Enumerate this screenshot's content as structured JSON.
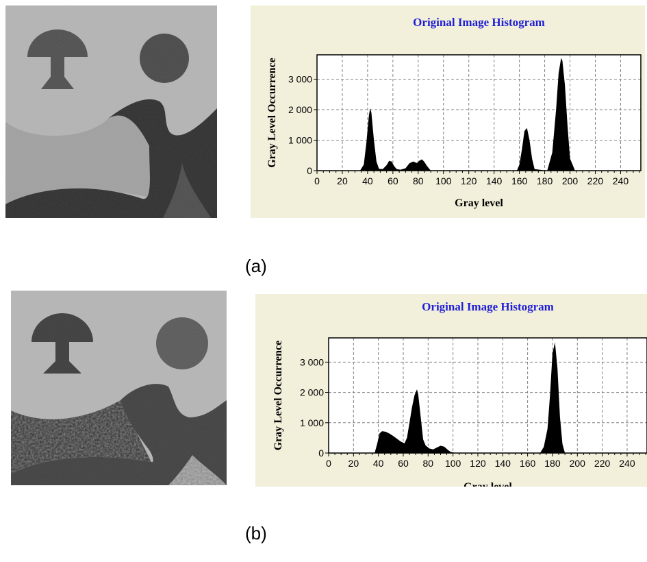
{
  "captions": {
    "a": "(a)",
    "b": "(b)"
  },
  "colors": {
    "panel_bg": "#f2efdb",
    "title": "#1e1ed6",
    "grid": "#808080",
    "fill": "#000000",
    "light_gray": "#b4b4b4",
    "mid_gray": "#a0a0a0",
    "dark_gray": "#2a2a2a",
    "shape_gray": "#4c4c4c"
  },
  "chart_data": [
    {
      "type": "area",
      "title": "Original Image Histogram",
      "xlabel": "Gray level",
      "ylabel": "Gray Level Occurrence",
      "xlim": [
        0,
        256
      ],
      "ylim": [
        0,
        3800
      ],
      "xticks": [
        0,
        20,
        40,
        60,
        80,
        100,
        120,
        140,
        160,
        180,
        200,
        220,
        240
      ],
      "yticks": [
        0,
        1000,
        2000,
        3000
      ],
      "yticklabels": [
        "0",
        "1 000",
        "2 000",
        "3 000"
      ],
      "grid": true,
      "x": [
        0,
        34,
        37,
        39,
        41,
        42,
        43,
        45,
        47,
        49,
        52,
        55,
        57,
        59,
        61,
        63,
        66,
        70,
        73,
        76,
        79,
        81,
        83,
        85,
        87,
        90,
        158,
        160,
        162,
        164,
        166,
        168,
        170,
        172,
        182,
        186,
        189,
        191,
        193,
        194,
        196,
        198,
        200,
        204,
        256
      ],
      "values": [
        0,
        0,
        200,
        900,
        1800,
        2050,
        1900,
        1000,
        300,
        60,
        50,
        180,
        320,
        300,
        150,
        50,
        30,
        80,
        240,
        300,
        250,
        330,
        370,
        280,
        150,
        0,
        0,
        200,
        700,
        1300,
        1400,
        1000,
        400,
        50,
        0,
        600,
        2000,
        3200,
        3700,
        3600,
        2800,
        1500,
        400,
        0,
        0
      ]
    },
    {
      "type": "area",
      "title": "Original Image Histogram",
      "xlabel": "Gray level",
      "ylabel": "Gray Level Occurrence",
      "xlim": [
        0,
        256
      ],
      "ylim": [
        0,
        3800
      ],
      "xticks": [
        0,
        20,
        40,
        60,
        80,
        100,
        120,
        140,
        160,
        180,
        200,
        220,
        240
      ],
      "yticks": [
        0,
        1000,
        2000,
        3000
      ],
      "yticklabels": [
        "0",
        "1 000",
        "2 000",
        "3 000"
      ],
      "grid": true,
      "x": [
        0,
        37,
        39,
        41,
        43,
        46,
        49,
        52,
        55,
        58,
        61,
        63,
        65,
        67,
        69,
        71,
        72,
        74,
        76,
        78,
        81,
        84,
        87,
        90,
        93,
        96,
        98,
        101,
        104,
        106,
        170,
        173,
        176,
        178,
        180,
        182,
        184,
        186,
        188,
        190,
        256
      ],
      "values": [
        0,
        0,
        300,
        650,
        720,
        700,
        640,
        560,
        470,
        380,
        320,
        500,
        1000,
        1500,
        1900,
        2100,
        1950,
        1200,
        450,
        250,
        150,
        120,
        180,
        240,
        210,
        100,
        40,
        10,
        0,
        0,
        0,
        200,
        800,
        1900,
        3300,
        3650,
        2800,
        1200,
        300,
        0,
        0
      ]
    }
  ]
}
